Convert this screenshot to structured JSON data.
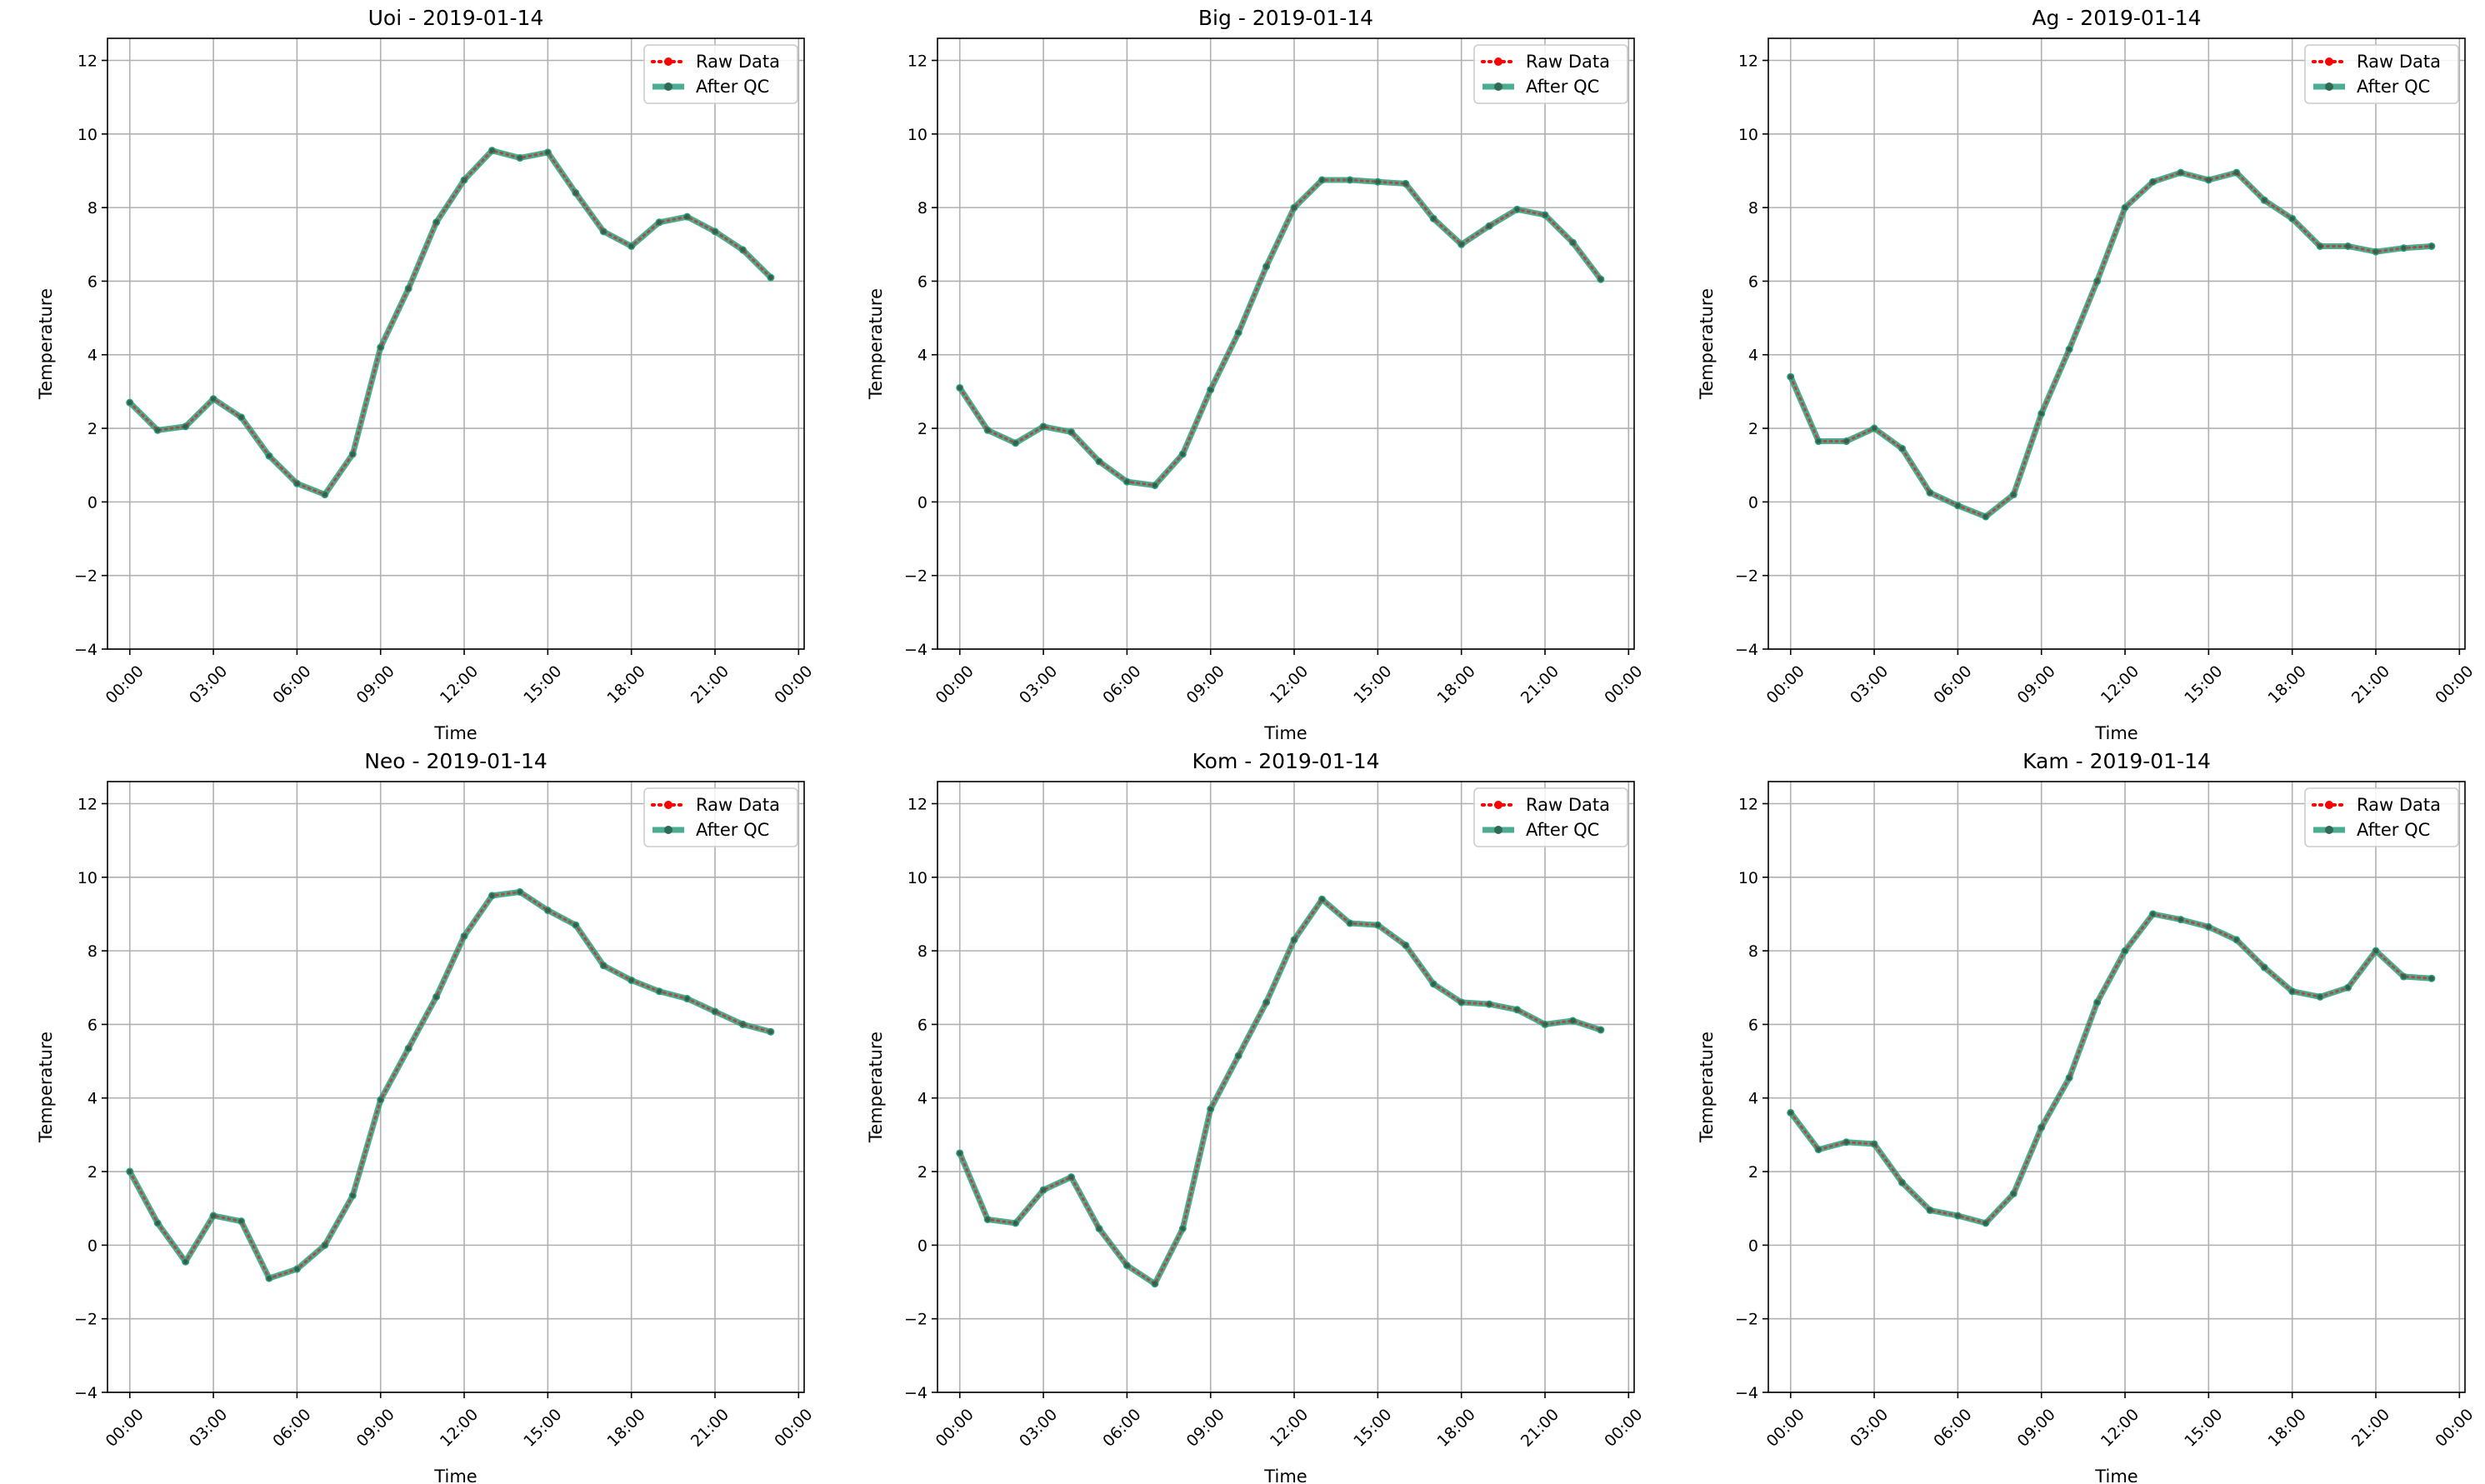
{
  "chart_data": [
    {
      "type": "line",
      "title": "Uoi - 2019-01-14",
      "xlabel": "Time",
      "ylabel": "Temperature",
      "ylim": [
        -4,
        12.6
      ],
      "yticks": [
        -4,
        -2,
        0,
        2,
        4,
        6,
        8,
        10,
        12
      ],
      "xlim": [
        -0.8,
        24.2
      ],
      "xticks": [
        0,
        3,
        6,
        9,
        12,
        15,
        18,
        21,
        24
      ],
      "xtick_labels": [
        "00:00",
        "03:00",
        "06:00",
        "09:00",
        "12:00",
        "15:00",
        "18:00",
        "21:00",
        "00:00"
      ],
      "grid": true,
      "legend": "top-right",
      "x": [
        "00:00",
        "01:00",
        "02:00",
        "03:00",
        "04:00",
        "05:00",
        "06:00",
        "07:00",
        "08:00",
        "09:00",
        "10:00",
        "11:00",
        "12:00",
        "13:00",
        "14:00",
        "15:00",
        "16:00",
        "17:00",
        "18:00",
        "19:00",
        "20:00",
        "21:00",
        "22:00",
        "23:00"
      ],
      "series": [
        {
          "name": "Raw Data",
          "color": "#ff0000",
          "values": [
            2.7,
            1.95,
            2.05,
            2.8,
            2.3,
            1.25,
            0.5,
            0.2,
            1.3,
            4.2,
            5.8,
            7.6,
            8.75,
            9.55,
            9.35,
            9.5,
            8.4,
            7.35,
            6.95,
            7.6,
            7.75,
            7.35,
            6.85,
            6.1
          ]
        },
        {
          "name": "After QC",
          "color": "#2a9d7c",
          "values": [
            2.7,
            1.95,
            2.05,
            2.8,
            2.3,
            1.25,
            0.5,
            0.2,
            1.3,
            4.2,
            5.8,
            7.6,
            8.75,
            9.55,
            9.35,
            9.5,
            8.4,
            7.35,
            6.95,
            7.6,
            7.75,
            7.35,
            6.85,
            6.1
          ]
        }
      ]
    },
    {
      "type": "line",
      "title": "Big - 2019-01-14",
      "xlabel": "Time",
      "ylabel": "Temperature",
      "ylim": [
        -4,
        12.6
      ],
      "yticks": [
        -4,
        -2,
        0,
        2,
        4,
        6,
        8,
        10,
        12
      ],
      "xlim": [
        -0.8,
        24.2
      ],
      "xticks": [
        0,
        3,
        6,
        9,
        12,
        15,
        18,
        21,
        24
      ],
      "xtick_labels": [
        "00:00",
        "03:00",
        "06:00",
        "09:00",
        "12:00",
        "15:00",
        "18:00",
        "21:00",
        "00:00"
      ],
      "grid": true,
      "legend": "top-right",
      "x": [
        "00:00",
        "01:00",
        "02:00",
        "03:00",
        "04:00",
        "05:00",
        "06:00",
        "07:00",
        "08:00",
        "09:00",
        "10:00",
        "11:00",
        "12:00",
        "13:00",
        "14:00",
        "15:00",
        "16:00",
        "17:00",
        "18:00",
        "19:00",
        "20:00",
        "21:00",
        "22:00",
        "23:00"
      ],
      "series": [
        {
          "name": "Raw Data",
          "color": "#ff0000",
          "values": [
            3.1,
            1.95,
            1.6,
            2.05,
            1.9,
            1.1,
            0.55,
            0.45,
            1.3,
            3.05,
            4.6,
            6.4,
            8.0,
            8.75,
            8.75,
            8.7,
            8.65,
            7.7,
            7.0,
            7.5,
            7.95,
            7.8,
            7.05,
            6.05
          ]
        },
        {
          "name": "After QC",
          "color": "#2a9d7c",
          "values": [
            3.1,
            1.95,
            1.6,
            2.05,
            1.9,
            1.1,
            0.55,
            0.45,
            1.3,
            3.05,
            4.6,
            6.4,
            8.0,
            8.75,
            8.75,
            8.7,
            8.65,
            7.7,
            7.0,
            7.5,
            7.95,
            7.8,
            7.05,
            6.05
          ]
        }
      ]
    },
    {
      "type": "line",
      "title": "Ag - 2019-01-14",
      "xlabel": "Time",
      "ylabel": "Temperature",
      "ylim": [
        -4,
        12.6
      ],
      "yticks": [
        -4,
        -2,
        0,
        2,
        4,
        6,
        8,
        10,
        12
      ],
      "xlim": [
        -0.8,
        24.2
      ],
      "xticks": [
        0,
        3,
        6,
        9,
        12,
        15,
        18,
        21,
        24
      ],
      "xtick_labels": [
        "00:00",
        "03:00",
        "06:00",
        "09:00",
        "12:00",
        "15:00",
        "18:00",
        "21:00",
        "00:00"
      ],
      "grid": true,
      "legend": "top-right",
      "x": [
        "00:00",
        "01:00",
        "02:00",
        "03:00",
        "04:00",
        "05:00",
        "06:00",
        "07:00",
        "08:00",
        "09:00",
        "10:00",
        "11:00",
        "12:00",
        "13:00",
        "14:00",
        "15:00",
        "16:00",
        "17:00",
        "18:00",
        "19:00",
        "20:00",
        "21:00",
        "22:00",
        "23:00"
      ],
      "series": [
        {
          "name": "Raw Data",
          "color": "#ff0000",
          "values": [
            3.4,
            1.65,
            1.65,
            2.0,
            1.45,
            0.25,
            -0.1,
            -0.4,
            0.2,
            2.4,
            4.15,
            6.0,
            8.0,
            8.7,
            8.95,
            8.75,
            8.95,
            8.2,
            7.7,
            6.95,
            6.95,
            6.8,
            6.9,
            6.95
          ]
        },
        {
          "name": "After QC",
          "color": "#2a9d7c",
          "values": [
            3.4,
            1.65,
            1.65,
            2.0,
            1.45,
            0.25,
            -0.1,
            -0.4,
            0.2,
            2.4,
            4.15,
            6.0,
            8.0,
            8.7,
            8.95,
            8.75,
            8.95,
            8.2,
            7.7,
            6.95,
            6.95,
            6.8,
            6.9,
            6.95
          ]
        }
      ]
    },
    {
      "type": "line",
      "title": "Neo - 2019-01-14",
      "xlabel": "Time",
      "ylabel": "Temperature",
      "ylim": [
        -4,
        12.6
      ],
      "yticks": [
        -4,
        -2,
        0,
        2,
        4,
        6,
        8,
        10,
        12
      ],
      "xlim": [
        -0.8,
        24.2
      ],
      "xticks": [
        0,
        3,
        6,
        9,
        12,
        15,
        18,
        21,
        24
      ],
      "xtick_labels": [
        "00:00",
        "03:00",
        "06:00",
        "09:00",
        "12:00",
        "15:00",
        "18:00",
        "21:00",
        "00:00"
      ],
      "grid": true,
      "legend": "top-right",
      "x": [
        "00:00",
        "01:00",
        "02:00",
        "03:00",
        "04:00",
        "05:00",
        "06:00",
        "07:00",
        "08:00",
        "09:00",
        "10:00",
        "11:00",
        "12:00",
        "13:00",
        "14:00",
        "15:00",
        "16:00",
        "17:00",
        "18:00",
        "19:00",
        "20:00",
        "21:00",
        "22:00",
        "23:00"
      ],
      "series": [
        {
          "name": "Raw Data",
          "color": "#ff0000",
          "values": [
            2.0,
            0.6,
            -0.45,
            0.8,
            0.65,
            -0.9,
            -0.65,
            0.0,
            1.35,
            3.95,
            5.35,
            6.75,
            8.4,
            9.5,
            9.6,
            9.1,
            8.7,
            7.6,
            7.2,
            6.9,
            6.7,
            6.35,
            6.0,
            5.8
          ]
        },
        {
          "name": "After QC",
          "color": "#2a9d7c",
          "values": [
            2.0,
            0.6,
            -0.45,
            0.8,
            0.65,
            -0.9,
            -0.65,
            0.0,
            1.35,
            3.95,
            5.35,
            6.75,
            8.4,
            9.5,
            9.6,
            9.1,
            8.7,
            7.6,
            7.2,
            6.9,
            6.7,
            6.35,
            6.0,
            5.8
          ]
        }
      ]
    },
    {
      "type": "line",
      "title": "Kom - 2019-01-14",
      "xlabel": "Time",
      "ylabel": "Temperature",
      "ylim": [
        -4,
        12.6
      ],
      "yticks": [
        -4,
        -2,
        0,
        2,
        4,
        6,
        8,
        10,
        12
      ],
      "xlim": [
        -0.8,
        24.2
      ],
      "xticks": [
        0,
        3,
        6,
        9,
        12,
        15,
        18,
        21,
        24
      ],
      "xtick_labels": [
        "00:00",
        "03:00",
        "06:00",
        "09:00",
        "12:00",
        "15:00",
        "18:00",
        "21:00",
        "00:00"
      ],
      "grid": true,
      "legend": "top-right",
      "x": [
        "00:00",
        "01:00",
        "02:00",
        "03:00",
        "04:00",
        "05:00",
        "06:00",
        "07:00",
        "08:00",
        "09:00",
        "10:00",
        "11:00",
        "12:00",
        "13:00",
        "14:00",
        "15:00",
        "16:00",
        "17:00",
        "18:00",
        "19:00",
        "20:00",
        "21:00",
        "22:00",
        "23:00"
      ],
      "series": [
        {
          "name": "Raw Data",
          "color": "#ff0000",
          "values": [
            2.5,
            0.7,
            0.6,
            1.5,
            1.85,
            0.45,
            -0.55,
            -1.05,
            0.45,
            3.7,
            5.15,
            6.6,
            8.3,
            9.4,
            8.75,
            8.7,
            8.15,
            7.1,
            6.6,
            6.55,
            6.4,
            6.0,
            6.1,
            5.85
          ]
        },
        {
          "name": "After QC",
          "color": "#2a9d7c",
          "values": [
            2.5,
            0.7,
            0.6,
            1.5,
            1.85,
            0.45,
            -0.55,
            -1.05,
            0.45,
            3.7,
            5.15,
            6.6,
            8.3,
            9.4,
            8.75,
            8.7,
            8.15,
            7.1,
            6.6,
            6.55,
            6.4,
            6.0,
            6.1,
            5.85
          ]
        }
      ]
    },
    {
      "type": "line",
      "title": "Kam - 2019-01-14",
      "xlabel": "Time",
      "ylabel": "Temperature",
      "ylim": [
        -4,
        12.6
      ],
      "yticks": [
        -4,
        -2,
        0,
        2,
        4,
        6,
        8,
        10,
        12
      ],
      "xlim": [
        -0.8,
        24.2
      ],
      "xticks": [
        0,
        3,
        6,
        9,
        12,
        15,
        18,
        21,
        24
      ],
      "xtick_labels": [
        "00:00",
        "03:00",
        "06:00",
        "09:00",
        "12:00",
        "15:00",
        "18:00",
        "21:00",
        "00:00"
      ],
      "grid": true,
      "legend": "top-right",
      "x": [
        "00:00",
        "01:00",
        "02:00",
        "03:00",
        "04:00",
        "05:00",
        "06:00",
        "07:00",
        "08:00",
        "09:00",
        "10:00",
        "11:00",
        "12:00",
        "13:00",
        "14:00",
        "15:00",
        "16:00",
        "17:00",
        "18:00",
        "19:00",
        "20:00",
        "21:00",
        "22:00",
        "23:00"
      ],
      "series": [
        {
          "name": "Raw Data",
          "color": "#ff0000",
          "values": [
            3.6,
            2.6,
            2.8,
            2.75,
            1.7,
            0.95,
            0.8,
            0.6,
            1.4,
            3.2,
            4.55,
            6.6,
            8.0,
            9.0,
            8.85,
            8.65,
            8.3,
            7.55,
            6.9,
            6.75,
            7.0,
            8.0,
            7.3,
            7.25
          ]
        },
        {
          "name": "After QC",
          "color": "#2a9d7c",
          "values": [
            3.6,
            2.6,
            2.8,
            2.75,
            1.7,
            0.95,
            0.8,
            0.6,
            1.4,
            3.2,
            4.55,
            6.6,
            8.0,
            9.0,
            8.85,
            8.65,
            8.3,
            7.55,
            6.9,
            6.75,
            7.0,
            8.0,
            7.3,
            7.25
          ]
        }
      ]
    }
  ]
}
